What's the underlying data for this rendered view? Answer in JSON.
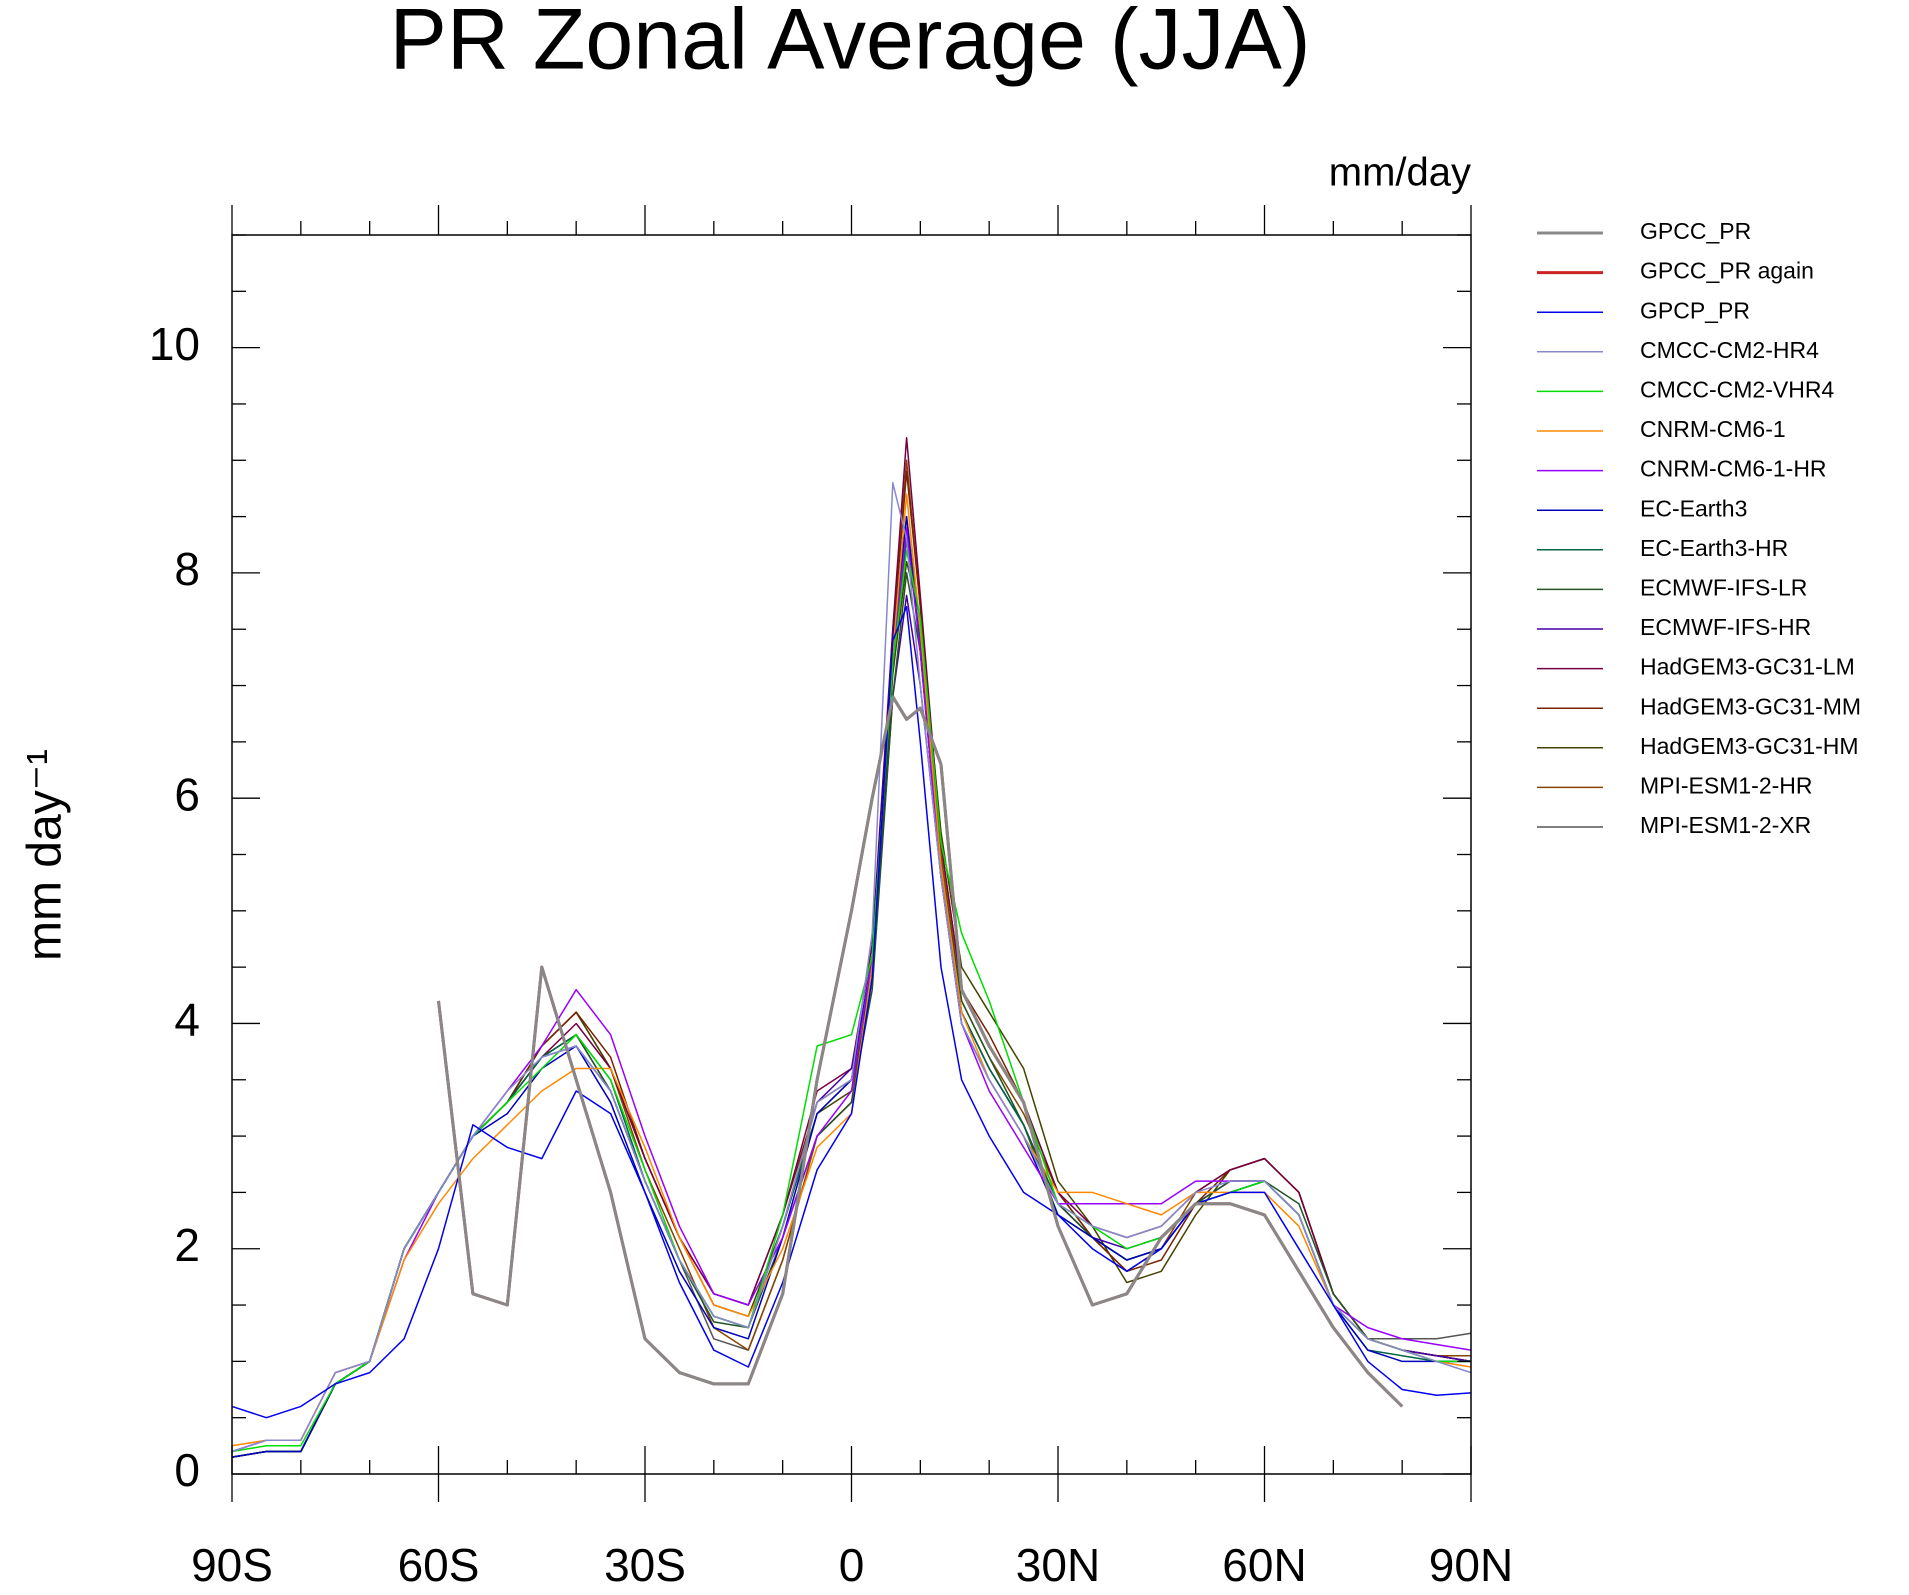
{
  "chart_data": {
    "type": "line",
    "title": "PR Zonal Average (JJA)",
    "subtitle": "mm/day",
    "ylabel": "mm day⁻¹",
    "x": [
      -90,
      -85,
      -80,
      -75,
      -70,
      -65,
      -60,
      -55,
      -50,
      -45,
      -40,
      -35,
      -30,
      -25,
      -20,
      -15,
      -10,
      -5,
      0,
      3,
      6,
      8,
      10,
      13,
      16,
      20,
      25,
      30,
      35,
      40,
      45,
      50,
      55,
      60,
      65,
      70,
      75,
      80,
      85,
      90
    ],
    "xlim": [
      -90,
      90
    ],
    "xticks": [
      {
        "value": -90,
        "label": "90S"
      },
      {
        "value": -60,
        "label": "60S"
      },
      {
        "value": -30,
        "label": "30S"
      },
      0,
      {
        "value": 30,
        "label": "30N"
      },
      {
        "value": 60,
        "label": "60N"
      },
      {
        "value": 90,
        "label": "90N"
      }
    ],
    "xminorticks": [
      -80,
      -70,
      -50,
      -40,
      -20,
      -10,
      10,
      20,
      40,
      50,
      70,
      80
    ],
    "ylim": [
      0,
      11
    ],
    "yticks": [
      0,
      2,
      4,
      6,
      8,
      10
    ],
    "yminorticks": [
      0.5,
      1,
      1.5,
      2.5,
      3,
      3.5,
      4.5,
      5,
      5.5,
      6.5,
      7,
      7.5,
      8.5,
      9,
      9.5,
      10.5,
      11
    ],
    "series": [
      {
        "name": "GPCC_PR",
        "color": "#888888",
        "width": 3,
        "values": [
          null,
          null,
          null,
          null,
          null,
          null,
          4.2,
          1.6,
          1.5,
          4.5,
          3.5,
          2.5,
          1.2,
          0.9,
          0.8,
          0.8,
          1.6,
          3.5,
          5.0,
          6.0,
          6.9,
          6.7,
          6.8,
          6.3,
          4.3,
          3.8,
          3.3,
          2.2,
          1.5,
          1.6,
          2.1,
          2.4,
          2.4,
          2.3,
          1.8,
          1.3,
          0.9,
          0.6,
          null,
          null
        ]
      },
      {
        "name": "GPCC_PR again",
        "color": "#cc2222",
        "width": 3,
        "values": [
          null,
          null,
          null,
          null,
          null,
          null,
          4.2,
          1.6,
          1.5,
          4.5,
          3.5,
          2.5,
          1.2,
          0.9,
          0.8,
          0.8,
          1.6,
          3.5,
          5.0,
          6.0,
          6.9,
          6.7,
          6.8,
          6.3,
          4.3,
          3.8,
          3.3,
          2.2,
          1.5,
          1.6,
          2.1,
          2.4,
          2.4,
          2.3,
          1.8,
          1.3,
          0.9,
          0.6,
          null,
          null
        ]
      },
      {
        "name": "GPCP_PR",
        "color": "#0000ee",
        "width": 1.5,
        "values": [
          0.6,
          0.5,
          0.6,
          0.8,
          0.9,
          1.2,
          2.0,
          3.1,
          2.9,
          2.8,
          3.4,
          3.2,
          2.5,
          1.7,
          1.1,
          0.95,
          1.7,
          2.7,
          3.2,
          4.4,
          7.4,
          7.7,
          6.5,
          4.5,
          3.5,
          3.0,
          2.5,
          2.3,
          2.0,
          1.8,
          2.0,
          2.4,
          2.5,
          2.5,
          2.0,
          1.5,
          1.0,
          0.75,
          0.7,
          0.72
        ]
      },
      {
        "name": "CMCC-CM2-HR4",
        "color": "#8888cc",
        "width": 1.5,
        "values": [
          0.2,
          0.3,
          0.3,
          0.9,
          1.0,
          2.0,
          2.5,
          3.0,
          3.4,
          3.7,
          3.8,
          3.4,
          2.6,
          1.9,
          1.4,
          1.3,
          2.2,
          3.3,
          3.5,
          4.8,
          8.8,
          8.3,
          7.0,
          5.3,
          4.0,
          3.5,
          3.0,
          2.4,
          2.2,
          2.1,
          2.2,
          2.5,
          2.6,
          2.6,
          2.3,
          1.5,
          1.2,
          1.1,
          1.0,
          0.9
        ]
      },
      {
        "name": "CMCC-CM2-VHR4",
        "color": "#00dd00",
        "width": 1.5,
        "values": [
          0.2,
          0.25,
          0.25,
          0.8,
          1.0,
          2.0,
          2.5,
          3.0,
          3.3,
          3.6,
          3.9,
          3.5,
          2.7,
          1.9,
          1.4,
          1.3,
          2.3,
          3.8,
          3.9,
          4.6,
          7.2,
          8.2,
          7.6,
          5.6,
          4.8,
          4.2,
          3.3,
          2.4,
          2.2,
          2.0,
          2.1,
          2.4,
          2.5,
          2.6,
          2.3,
          1.5,
          1.2,
          1.1,
          1.0,
          1.0
        ]
      },
      {
        "name": "CNRM-CM6-1",
        "color": "#ff8800",
        "width": 1.5,
        "values": [
          0.25,
          0.3,
          0.3,
          0.9,
          1.0,
          1.9,
          2.4,
          2.8,
          3.1,
          3.4,
          3.6,
          3.6,
          2.9,
          2.1,
          1.5,
          1.4,
          2.0,
          2.9,
          3.2,
          4.5,
          7.3,
          8.7,
          7.5,
          5.4,
          4.1,
          3.5,
          3.0,
          2.5,
          2.5,
          2.4,
          2.3,
          2.5,
          2.5,
          2.5,
          2.2,
          1.5,
          1.2,
          1.1,
          1.0,
          0.95
        ]
      },
      {
        "name": "CNRM-CM6-1-HR",
        "color": "#9900ff",
        "width": 1.5,
        "values": [
          0.2,
          0.3,
          0.3,
          0.9,
          1.0,
          1.9,
          2.5,
          3.0,
          3.4,
          3.8,
          4.3,
          3.9,
          3.0,
          2.2,
          1.6,
          1.5,
          2.1,
          3.0,
          3.4,
          4.6,
          7.2,
          8.4,
          7.3,
          5.3,
          4.0,
          3.4,
          2.9,
          2.4,
          2.4,
          2.4,
          2.4,
          2.6,
          2.6,
          2.6,
          2.3,
          1.5,
          1.3,
          1.2,
          1.15,
          1.1
        ]
      },
      {
        "name": "EC-Earth3",
        "color": "#0000bb",
        "width": 1.5,
        "values": [
          0.15,
          0.2,
          0.2,
          0.8,
          1.0,
          2.0,
          2.5,
          3.0,
          3.2,
          3.6,
          3.8,
          3.3,
          2.5,
          1.8,
          1.3,
          1.2,
          2.1,
          3.2,
          3.5,
          4.6,
          7.4,
          8.5,
          7.3,
          5.3,
          4.0,
          3.5,
          3.0,
          2.3,
          2.1,
          1.9,
          2.0,
          2.4,
          2.5,
          2.6,
          2.3,
          1.5,
          1.1,
          1.0,
          1.0,
          1.0
        ]
      },
      {
        "name": "EC-Earth3-HR",
        "color": "#006644",
        "width": 1.5,
        "values": [
          0.15,
          0.2,
          0.2,
          0.8,
          1.0,
          2.0,
          2.5,
          3.0,
          3.3,
          3.7,
          3.9,
          3.5,
          2.6,
          1.9,
          1.4,
          1.3,
          2.2,
          3.2,
          3.5,
          4.5,
          7.2,
          8.3,
          7.4,
          5.4,
          4.1,
          3.6,
          3.1,
          2.3,
          2.1,
          1.9,
          2.0,
          2.4,
          2.5,
          2.6,
          2.3,
          1.5,
          1.1,
          1.05,
          1.0,
          1.0
        ]
      },
      {
        "name": "ECMWF-IFS-LR",
        "color": "#225522",
        "width": 1.5,
        "values": [
          0.15,
          0.2,
          0.2,
          0.8,
          1.0,
          2.0,
          2.5,
          3.0,
          3.3,
          3.7,
          3.9,
          3.4,
          2.6,
          1.9,
          1.35,
          1.3,
          2.1,
          3.0,
          3.3,
          4.3,
          6.9,
          8.0,
          7.3,
          5.4,
          4.2,
          3.7,
          3.1,
          2.4,
          2.1,
          1.9,
          2.0,
          2.4,
          2.6,
          2.6,
          2.4,
          1.6,
          1.2,
          1.1,
          1.0,
          1.0
        ]
      },
      {
        "name": "ECMWF-IFS-HR",
        "color": "#4400aa",
        "width": 1.5,
        "values": [
          0.15,
          0.2,
          0.2,
          0.8,
          1.0,
          2.0,
          2.5,
          3.0,
          3.3,
          3.7,
          3.8,
          3.4,
          2.6,
          1.9,
          1.4,
          1.3,
          2.2,
          3.3,
          3.6,
          4.4,
          6.9,
          7.8,
          7.0,
          5.3,
          4.1,
          3.6,
          3.1,
          2.4,
          2.1,
          2.0,
          2.1,
          2.4,
          2.6,
          2.6,
          2.3,
          1.5,
          1.2,
          1.1,
          1.05,
          1.0
        ]
      },
      {
        "name": "HadGEM3-GC31-LM",
        "color": "#770044",
        "width": 1.5,
        "values": [
          0.15,
          0.2,
          0.2,
          0.8,
          1.0,
          2.0,
          2.5,
          3.0,
          3.3,
          3.7,
          4.0,
          3.6,
          2.8,
          2.1,
          1.6,
          1.5,
          2.3,
          3.4,
          3.6,
          4.7,
          7.5,
          9.2,
          7.8,
          5.6,
          4.3,
          3.8,
          3.3,
          2.5,
          2.2,
          2.1,
          2.2,
          2.5,
          2.7,
          2.8,
          2.5,
          1.6,
          1.2,
          1.1,
          1.05,
          1.0
        ]
      },
      {
        "name": "HadGEM3-GC31-MM",
        "color": "#772200",
        "width": 1.5,
        "values": [
          0.15,
          0.2,
          0.2,
          0.8,
          1.0,
          2.0,
          2.5,
          3.0,
          3.3,
          3.8,
          4.1,
          3.7,
          2.8,
          2.1,
          1.6,
          1.5,
          2.3,
          3.3,
          3.5,
          4.6,
          7.4,
          8.9,
          7.7,
          5.6,
          4.3,
          3.9,
          3.3,
          2.5,
          2.1,
          1.8,
          1.9,
          2.4,
          2.7,
          2.8,
          2.5,
          1.6,
          1.2,
          1.1,
          1.05,
          1.0
        ]
      },
      {
        "name": "HadGEM3-GC31-HM",
        "color": "#444400",
        "width": 1.5,
        "values": [
          0.15,
          0.2,
          0.2,
          0.8,
          1.0,
          2.0,
          2.5,
          3.0,
          3.3,
          3.8,
          4.1,
          3.6,
          2.8,
          2.1,
          1.5,
          1.4,
          2.2,
          3.2,
          3.4,
          4.4,
          7.1,
          8.1,
          7.6,
          5.7,
          4.5,
          4.1,
          3.6,
          2.6,
          2.2,
          1.7,
          1.8,
          2.3,
          2.7,
          2.8,
          2.5,
          1.6,
          1.2,
          1.1,
          1.05,
          1.0
        ]
      },
      {
        "name": "MPI-ESM1-2-HR",
        "color": "#884400",
        "width": 1.5,
        "values": [
          0.15,
          0.2,
          0.2,
          0.8,
          1.0,
          2.0,
          2.5,
          3.0,
          3.3,
          3.8,
          4.1,
          3.6,
          2.7,
          2.0,
          1.3,
          1.1,
          1.9,
          3.0,
          3.3,
          4.5,
          7.5,
          9.0,
          7.7,
          5.5,
          4.2,
          3.7,
          3.2,
          2.5,
          2.1,
          1.8,
          2.0,
          2.5,
          2.7,
          2.8,
          2.5,
          1.6,
          1.2,
          1.1,
          1.05,
          1.05
        ]
      },
      {
        "name": "MPI-ESM1-2-XR",
        "color": "#555555",
        "width": 1.5,
        "values": [
          0.15,
          0.2,
          0.2,
          0.8,
          1.0,
          2.0,
          2.5,
          3.0,
          3.3,
          3.7,
          3.9,
          3.4,
          2.6,
          1.9,
          1.2,
          1.1,
          1.9,
          3.0,
          3.3,
          4.4,
          7.3,
          8.5,
          7.5,
          5.4,
          4.1,
          3.6,
          3.1,
          2.4,
          2.1,
          1.9,
          2.0,
          2.4,
          2.6,
          2.6,
          2.3,
          1.5,
          1.2,
          1.2,
          1.2,
          1.25
        ]
      }
    ]
  }
}
